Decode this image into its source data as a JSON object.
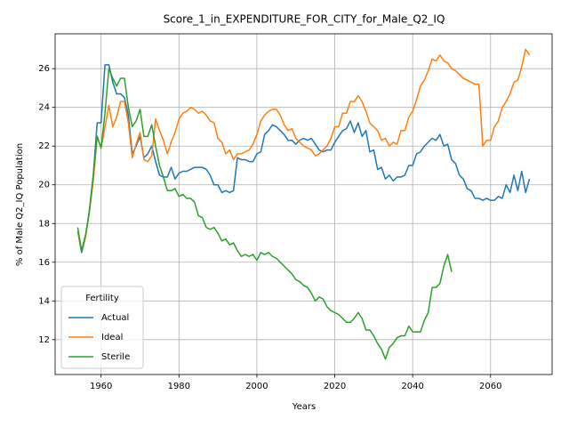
{
  "chart_data": {
    "type": "line",
    "title": "Score_1_in_EXPENDITURE_FOR_CITY_for_Male_Q2_IQ",
    "x_label": "Years",
    "y_label": "% of Male Q2_IQ Population",
    "legend_title": "Fertility",
    "legend_position": "lower left",
    "grid": true,
    "x": [
      1954,
      1955,
      1956,
      1957,
      1958,
      1959,
      1960,
      1961,
      1962,
      1963,
      1964,
      1965,
      1966,
      1967,
      1968,
      1969,
      1970,
      1971,
      1972,
      1973,
      1974,
      1975,
      1976,
      1977,
      1978,
      1979,
      1980,
      1981,
      1982,
      1983,
      1984,
      1985,
      1986,
      1987,
      1988,
      1989,
      1990,
      1991,
      1992,
      1993,
      1994,
      1995,
      1996,
      1997,
      1998,
      1999,
      2000,
      2001,
      2002,
      2003,
      2004,
      2005,
      2006,
      2007,
      2008,
      2009,
      2010,
      2011,
      2012,
      2013,
      2014,
      2015,
      2016,
      2017,
      2018,
      2019,
      2020,
      2021,
      2022,
      2023,
      2024,
      2025,
      2026,
      2027,
      2028,
      2029,
      2030,
      2031,
      2032,
      2033,
      2034,
      2035,
      2036,
      2037,
      2038,
      2039,
      2040,
      2041,
      2042,
      2043,
      2044,
      2045,
      2046,
      2047,
      2048,
      2049,
      2050,
      2051,
      2052,
      2053,
      2054,
      2055,
      2056,
      2057,
      2058,
      2059,
      2060,
      2061,
      2062,
      2063,
      2064,
      2065,
      2066,
      2067,
      2068,
      2069,
      2070
    ],
    "xlim": [
      1948.2,
      2075.8
    ],
    "xticks": [
      1960,
      1980,
      2000,
      2020,
      2040,
      2060
    ],
    "ylim": [
      10.2,
      27.8
    ],
    "yticks": [
      12,
      14,
      16,
      18,
      20,
      22,
      24,
      26
    ],
    "series": [
      {
        "name": "Actual",
        "color": "#1f77b4",
        "values": [
          17.6,
          16.5,
          17.3,
          18.7,
          20.5,
          23.2,
          23.2,
          26.2,
          26.2,
          25.3,
          24.7,
          24.7,
          24.5,
          23.6,
          21.6,
          22.0,
          22.5,
          21.4,
          21.6,
          22.0,
          21.2,
          20.5,
          20.4,
          20.4,
          20.9,
          20.3,
          20.6,
          20.7,
          20.7,
          20.8,
          20.9,
          20.9,
          20.9,
          20.8,
          20.5,
          20.0,
          20.0,
          19.6,
          19.7,
          19.6,
          19.7,
          21.4,
          21.3,
          21.3,
          21.2,
          21.2,
          21.6,
          21.7,
          22.6,
          22.8,
          23.1,
          23.0,
          22.8,
          22.6,
          22.3,
          22.3,
          22.1,
          22.3,
          22.4,
          22.3,
          22.4,
          22.1,
          21.8,
          21.7,
          21.8,
          21.8,
          22.2,
          22.5,
          22.8,
          22.9,
          23.3,
          22.7,
          23.2,
          22.5,
          22.8,
          21.7,
          21.8,
          20.8,
          20.9,
          20.3,
          20.5,
          20.2,
          20.4,
          20.4,
          20.5,
          21.0,
          21.0,
          21.6,
          21.7,
          22.0,
          22.2,
          22.4,
          22.3,
          22.6,
          22.0,
          22.1,
          21.3,
          21.1,
          20.5,
          20.3,
          19.8,
          19.7,
          19.3,
          19.3,
          19.2,
          19.3,
          19.2,
          19.2,
          19.4,
          19.3,
          20.0,
          19.6,
          20.5,
          19.7,
          20.7,
          19.6,
          20.3
        ]
      },
      {
        "name": "Ideal",
        "color": "#ff7f0e",
        "values": [
          17.6,
          16.6,
          17.3,
          18.6,
          20.2,
          22.5,
          21.9,
          23.0,
          24.1,
          23.0,
          23.5,
          24.3,
          24.3,
          23.2,
          21.4,
          22.1,
          22.7,
          21.3,
          21.2,
          21.5,
          23.4,
          22.8,
          22.3,
          21.6,
          22.2,
          22.7,
          23.4,
          23.7,
          23.8,
          24.0,
          23.9,
          23.7,
          23.8,
          23.6,
          23.3,
          23.2,
          22.4,
          22.2,
          21.6,
          21.8,
          21.3,
          21.6,
          21.6,
          21.7,
          21.8,
          22.1,
          22.6,
          23.3,
          23.6,
          23.8,
          23.9,
          23.9,
          23.6,
          23.1,
          22.8,
          22.9,
          22.4,
          22.2,
          22.0,
          21.9,
          21.8,
          21.5,
          21.6,
          21.8,
          22.0,
          22.4,
          23.0,
          23.0,
          23.7,
          23.7,
          24.3,
          24.3,
          24.6,
          24.3,
          23.8,
          23.2,
          23.0,
          22.8,
          22.3,
          22.4,
          22.0,
          22.2,
          22.1,
          22.8,
          22.8,
          23.5,
          23.8,
          24.4,
          25.1,
          25.4,
          25.9,
          26.5,
          26.4,
          26.7,
          26.4,
          26.3,
          26.0,
          25.9,
          25.7,
          25.5,
          25.4,
          25.3,
          25.2,
          25.2,
          22.0,
          22.3,
          22.3,
          23.0,
          23.3,
          24.0,
          24.3,
          24.7,
          25.3,
          25.4,
          26.1,
          27.0,
          26.7
        ]
      },
      {
        "name": "Sterile",
        "color": "#2ca02c",
        "values": [
          17.8,
          16.6,
          17.4,
          18.6,
          20.5,
          22.5,
          21.9,
          23.7,
          26.0,
          25.5,
          25.1,
          25.5,
          25.5,
          24.0,
          23.0,
          23.3,
          23.9,
          22.5,
          22.5,
          23.1,
          22.0,
          21.0,
          20.4,
          19.7,
          19.7,
          19.8,
          19.4,
          19.5,
          19.3,
          19.3,
          19.1,
          18.4,
          18.3,
          17.8,
          17.7,
          17.8,
          17.5,
          17.1,
          17.2,
          16.9,
          17.0,
          16.6,
          16.3,
          16.4,
          16.3,
          16.4,
          16.1,
          16.5,
          16.4,
          16.5,
          16.3,
          16.2,
          16.0,
          15.8,
          15.6,
          15.4,
          15.1,
          15.0,
          14.8,
          14.7,
          14.4,
          14.0,
          14.2,
          14.1,
          13.7,
          13.5,
          13.4,
          13.3,
          13.1,
          12.9,
          12.9,
          13.1,
          13.4,
          13.1,
          12.5,
          12.5,
          12.2,
          11.8,
          11.5,
          11.0,
          11.6,
          11.8,
          12.1,
          12.2,
          12.2,
          12.7,
          12.4,
          12.4,
          12.4,
          13.0,
          13.4,
          14.7,
          14.7,
          14.9,
          15.8,
          16.4,
          15.5,
          null,
          null,
          null,
          null,
          null,
          null,
          null,
          null,
          null,
          null,
          null,
          null,
          null,
          null,
          null,
          null,
          null,
          null,
          null,
          null
        ]
      }
    ]
  }
}
